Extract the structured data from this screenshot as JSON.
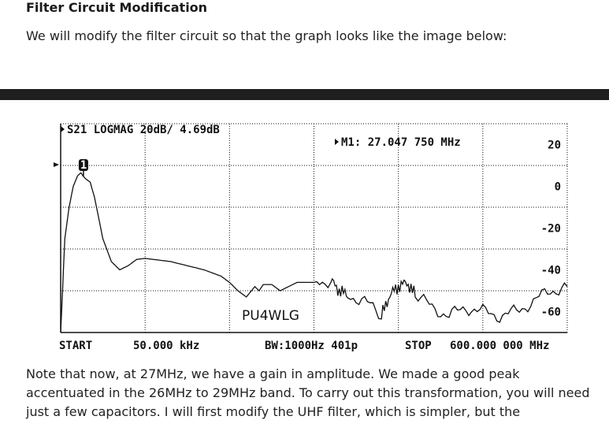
{
  "article": {
    "heading": "Filter Circuit Modification",
    "intro": "We will modify the filter circuit so that the graph looks like the image below:",
    "paragraph_lines": [
      "Note that now, at 27MHz, we have a gain in amplitude. We made a good peak",
      "accentuated in the 26MHz to 29MHz band. To carry out this transformation, you will need",
      "just a few capacitors. I will first modify the UHF filter, which is simpler, but the"
    ]
  },
  "screen": {
    "trace_label": "S21 LOGMAG 20dB/ 4.69dB",
    "marker_readout": "M1: 27.047 750 MHz",
    "marker_number": "1",
    "callsign": "PU4WLG",
    "footer": {
      "start": "START",
      "start_freq": "50.000 kHz",
      "bw": "BW:1000Hz 401p",
      "stop": "STOP",
      "stop_freq": "600.000 000 MHz"
    },
    "scale_labels": [
      "20",
      "0",
      "-20",
      "-40",
      "-60"
    ]
  },
  "chart_data": {
    "type": "line",
    "title": "S21 LOGMAG 20dB/ 4.69dB",
    "xlabel": "",
    "ylabel": "",
    "xlim": [
      0.05,
      600
    ],
    "ylim": [
      -70,
      30
    ],
    "x_unit": "MHz",
    "y_unit": "dB",
    "grid": true,
    "marker": {
      "name": "M1",
      "x": 27.04775,
      "y": 4.7
    },
    "series": [
      {
        "name": "S21",
        "x": [
          0.05,
          5,
          10,
          15,
          20,
          24,
          27.05,
          30,
          35,
          40,
          50,
          60,
          70,
          80,
          90,
          100,
          110,
          120,
          130,
          140,
          150,
          160,
          170,
          180,
          190,
          200,
          210,
          220,
          230,
          235,
          240,
          250,
          260,
          280,
          300,
          320,
          330,
          340,
          360,
          380,
          390,
          400,
          410,
          420,
          440,
          460,
          480,
          500,
          520,
          540,
          560,
          580,
          600
        ],
        "y": [
          -70,
          -25,
          -10,
          0,
          5,
          6.5,
          4.7,
          3.5,
          2,
          -5,
          -25,
          -36,
          -40,
          -38,
          -35,
          -34.5,
          -35,
          -35.5,
          -36,
          -37,
          -38,
          -39,
          -40,
          -41.5,
          -43,
          -46,
          -50,
          -53,
          -48,
          -50,
          -47,
          -47,
          -50,
          -46,
          -46,
          -45,
          -50,
          -52,
          -55,
          -62,
          -52,
          -48,
          -46,
          -52,
          -58,
          -62,
          -58,
          -60,
          -62,
          -60,
          -55,
          -50,
          -48
        ]
      }
    ]
  }
}
